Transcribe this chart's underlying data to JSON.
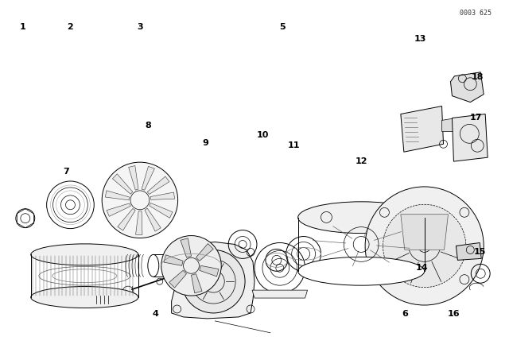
{
  "background_color": "#ffffff",
  "line_color": "#000000",
  "diagram_code": "0003 625",
  "fig_width": 6.4,
  "fig_height": 4.48,
  "dpi": 100,
  "label_data": [
    [
      1,
      0.043,
      0.535
    ],
    [
      2,
      0.135,
      0.435
    ],
    [
      3,
      0.235,
      0.355
    ],
    [
      4,
      0.275,
      0.895
    ],
    [
      5,
      0.42,
      0.365
    ],
    [
      6,
      0.51,
      0.895
    ],
    [
      7,
      0.135,
      0.215
    ],
    [
      8,
      0.255,
      0.27
    ],
    [
      9,
      0.305,
      0.32
    ],
    [
      10,
      0.37,
      0.245
    ],
    [
      11,
      0.42,
      0.23
    ],
    [
      12,
      0.54,
      0.19
    ],
    [
      13,
      0.66,
      0.235
    ],
    [
      14,
      0.72,
      0.705
    ],
    [
      15,
      0.875,
      0.66
    ],
    [
      16,
      0.84,
      0.89
    ],
    [
      17,
      0.82,
      0.34
    ],
    [
      18,
      0.89,
      0.27
    ]
  ]
}
